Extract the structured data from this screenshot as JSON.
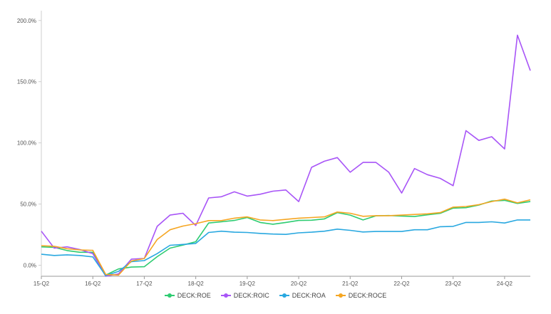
{
  "chart_data": {
    "type": "line",
    "categories": [
      "15-Q2",
      "15-Q3",
      "15-Q4",
      "16-Q1",
      "16-Q2",
      "16-Q3",
      "16-Q4",
      "17-Q1",
      "17-Q2",
      "17-Q3",
      "17-Q4",
      "18-Q1",
      "18-Q2",
      "18-Q3",
      "18-Q4",
      "19-Q1",
      "19-Q2",
      "19-Q3",
      "19-Q4",
      "20-Q1",
      "20-Q2",
      "20-Q3",
      "20-Q4",
      "21-Q1",
      "21-Q2",
      "21-Q3",
      "21-Q4",
      "22-Q1",
      "22-Q2",
      "22-Q3",
      "22-Q4",
      "23-Q1",
      "23-Q2",
      "23-Q3",
      "23-Q4",
      "24-Q1",
      "24-Q2",
      "24-Q3",
      "24-Q4"
    ],
    "tick_labels": [
      "15-Q2",
      "16-Q2",
      "17-Q2",
      "18-Q2",
      "19-Q2",
      "20-Q2",
      "21-Q2",
      "22-Q2",
      "23-Q2",
      "24-Q2"
    ],
    "y_ticks": [
      "0.0%",
      "50.0%",
      "100.0%",
      "150.0%",
      "200.0%"
    ],
    "y_tick_values": [
      0,
      50,
      100,
      150,
      200
    ],
    "ylim": [
      -9,
      208
    ],
    "grid": false,
    "legend_position": "bottom",
    "series": [
      {
        "name": "DECK:ROE",
        "color": "#2ecc71",
        "values": [
          15.0,
          14.6,
          12.0,
          10.6,
          10.6,
          -8.0,
          -3.0,
          -1.5,
          -1.2,
          7.0,
          14.0,
          16.5,
          19.2,
          34.5,
          35.5,
          36.6,
          39.0,
          35.0,
          33.5,
          35.0,
          36.6,
          36.8,
          37.9,
          43.0,
          41.0,
          37.0,
          40.4,
          40.6,
          40.2,
          39.8,
          41.2,
          42.4,
          46.7,
          47.0,
          49.2,
          52.5,
          53.0,
          50.5,
          52.0
        ]
      },
      {
        "name": "DECK:ROIC",
        "color": "#a855f7",
        "values": [
          27.8,
          14.0,
          15.0,
          12.8,
          9.5,
          -9.0,
          -7.0,
          5.0,
          5.5,
          31.8,
          41.0,
          42.5,
          32.5,
          55.0,
          56.0,
          60.0,
          56.5,
          58.0,
          60.5,
          61.5,
          52.0,
          80.0,
          85.0,
          88.0,
          76.0,
          84.0,
          84.0,
          76.0,
          59.0,
          79.0,
          74.0,
          71.0,
          65.0,
          110.0,
          102.0,
          105.0,
          95.0,
          188.0,
          159.0
        ]
      },
      {
        "name": "DECK:ROA",
        "color": "#29a8e0",
        "values": [
          9.0,
          8.0,
          8.5,
          8.0,
          6.8,
          -8.5,
          -5.0,
          3.0,
          3.8,
          9.5,
          16.3,
          17.0,
          17.8,
          26.8,
          27.8,
          27.0,
          26.8,
          26.0,
          25.5,
          25.2,
          26.5,
          27.0,
          27.8,
          29.5,
          28.5,
          27.2,
          27.6,
          27.6,
          27.6,
          29.0,
          29.0,
          31.5,
          31.8,
          35.0,
          35.0,
          35.5,
          34.5,
          37.0,
          37.0
        ]
      },
      {
        "name": "DECK:ROCE",
        "color": "#f5a623",
        "values": [
          16.0,
          15.5,
          13.5,
          12.5,
          12.2,
          -7.5,
          -8.0,
          3.5,
          5.5,
          21.0,
          29.0,
          32.0,
          34.0,
          36.5,
          36.5,
          38.5,
          39.5,
          37.0,
          36.5,
          37.5,
          38.5,
          39.0,
          39.5,
          43.5,
          42.5,
          40.0,
          40.5,
          40.5,
          41.0,
          41.5,
          42.0,
          43.0,
          47.5,
          48.0,
          49.5,
          52.0,
          54.0,
          51.0,
          53.5
        ]
      }
    ]
  }
}
